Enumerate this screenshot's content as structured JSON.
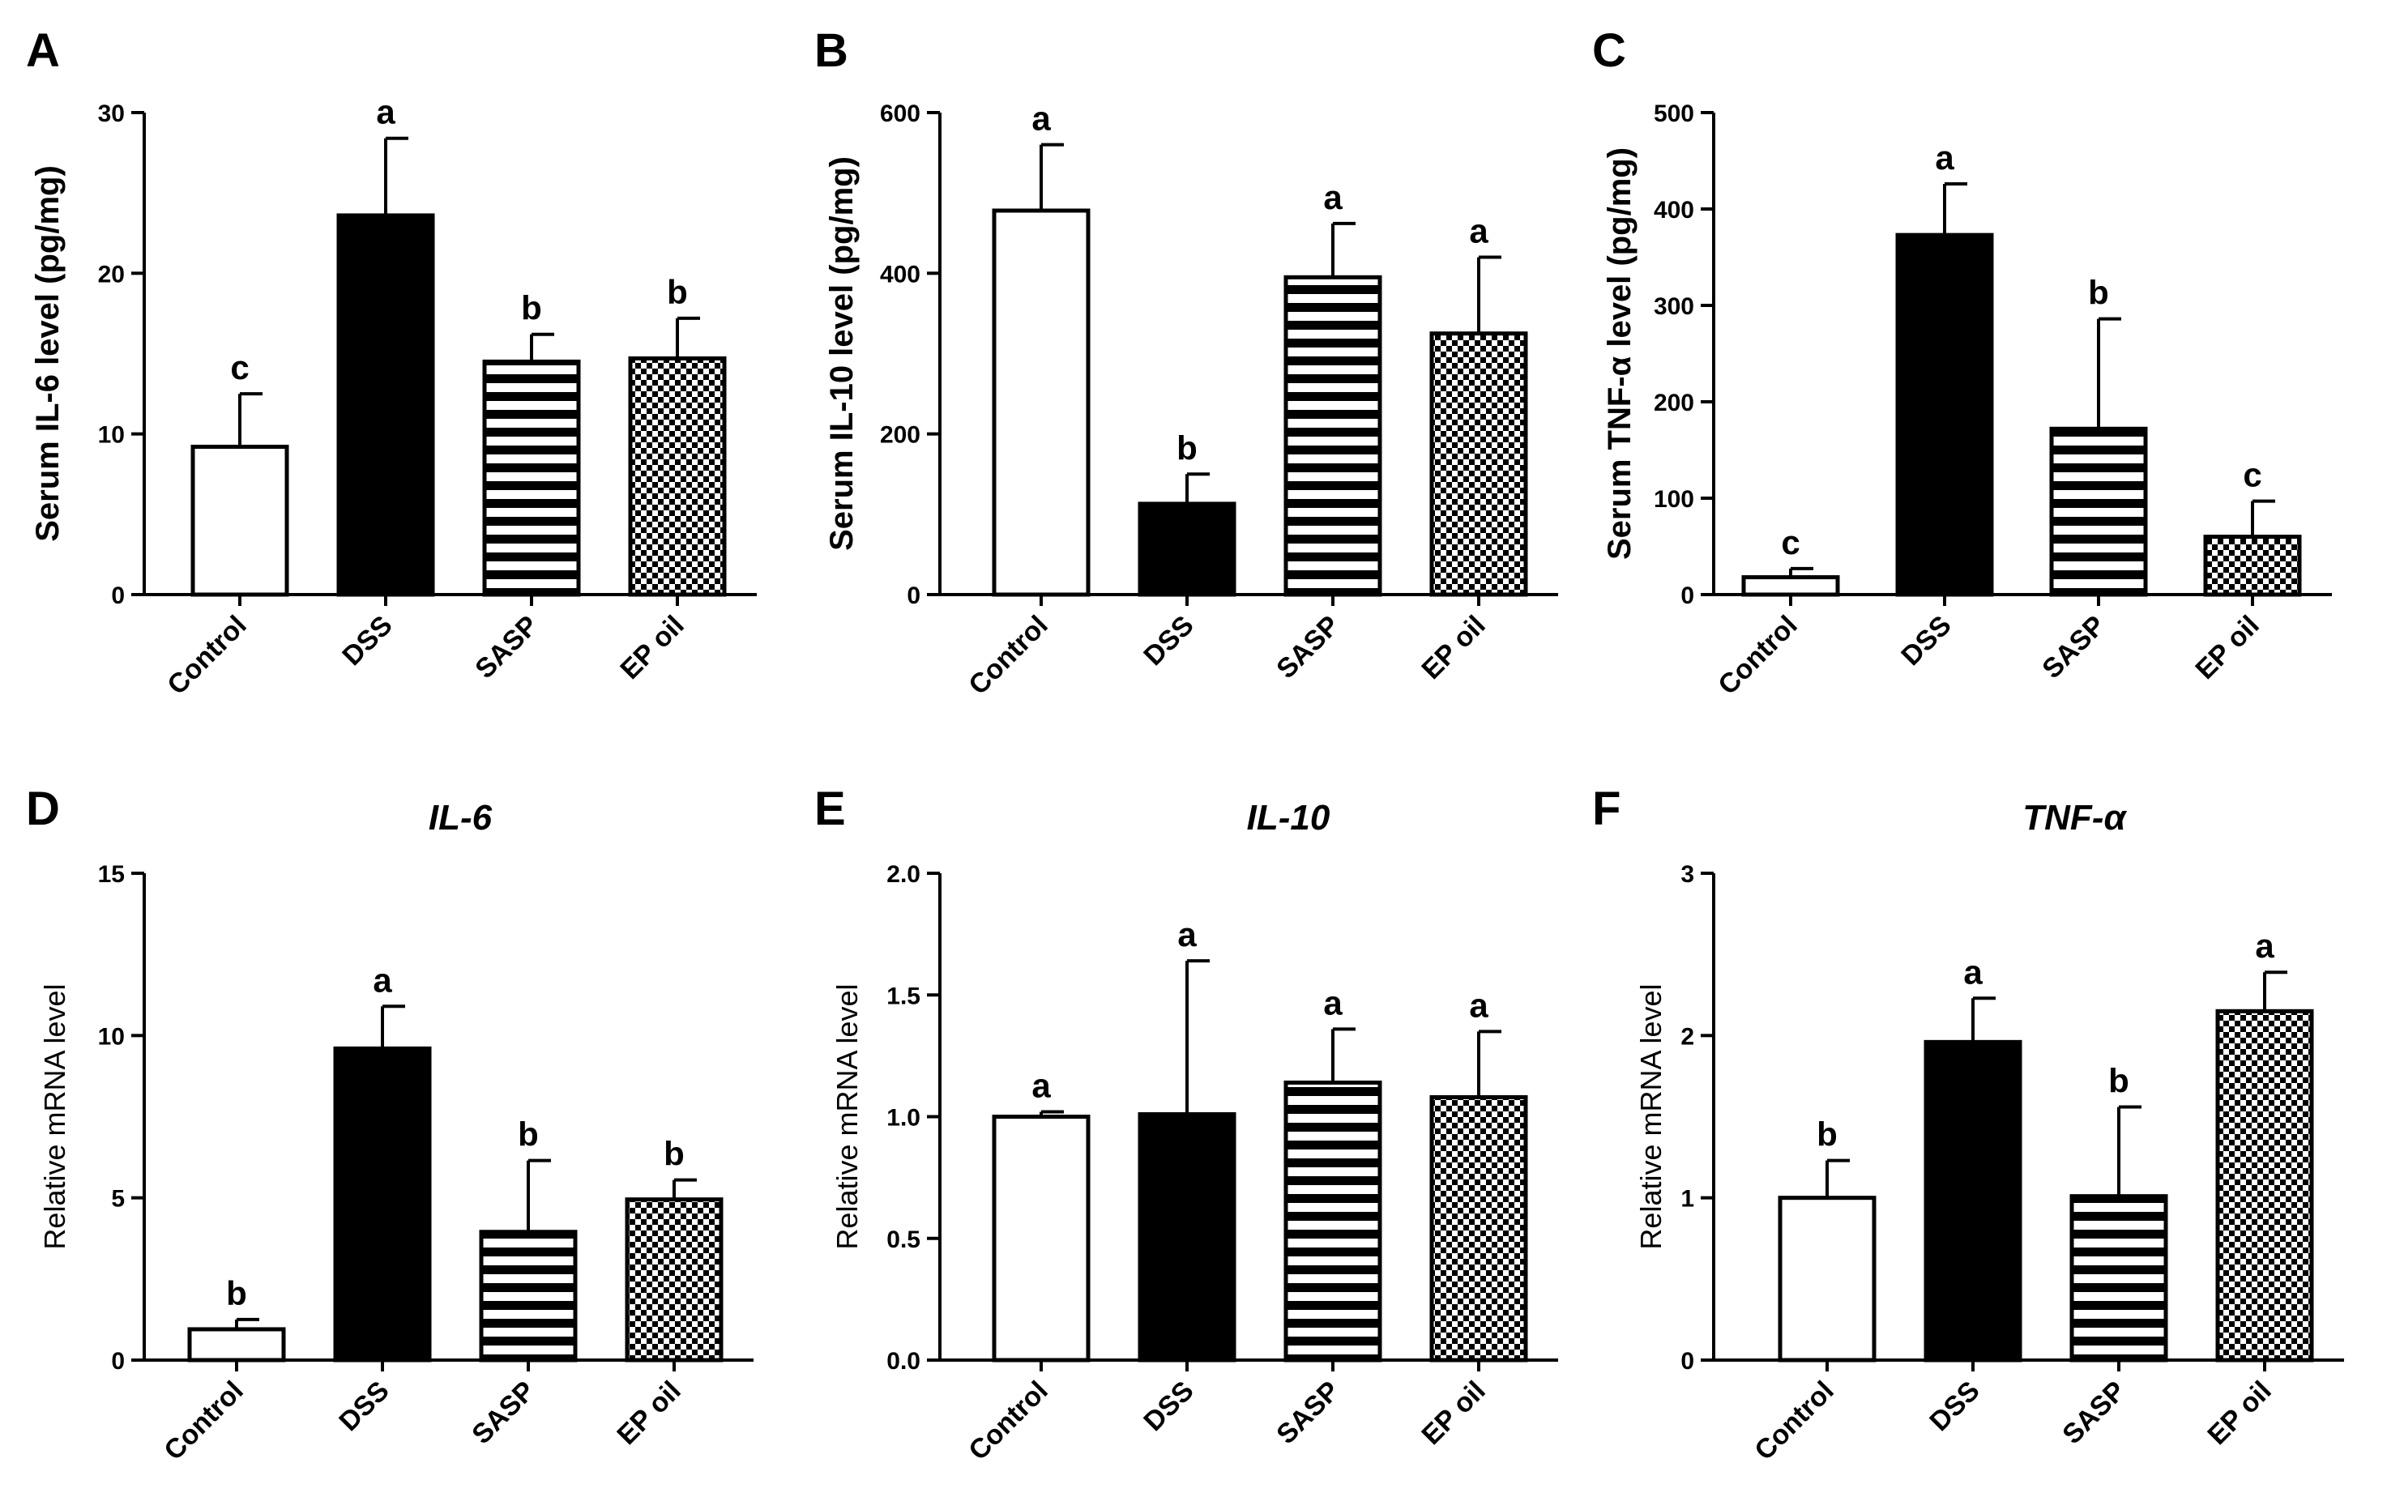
{
  "chart_data": [
    {
      "type": "bar",
      "panel": "A",
      "title": "",
      "ylabel": "Serum IL-6 level (pg/mg)",
      "ylim": [
        0,
        30
      ],
      "yticks": [
        0,
        10,
        20,
        30
      ],
      "categories": [
        "Control",
        "DSS",
        "SASP",
        "EP oil"
      ],
      "values": [
        9.2,
        23.6,
        14.5,
        14.7
      ],
      "errors": [
        3.3,
        4.8,
        1.7,
        2.5
      ],
      "letters": [
        "c",
        "a",
        "b",
        "b"
      ]
    },
    {
      "type": "bar",
      "panel": "B",
      "title": "",
      "ylabel": "Serum IL-10 level (pg/mg)",
      "ylim": [
        0,
        600
      ],
      "yticks": [
        0,
        200,
        400,
        600
      ],
      "categories": [
        "Control",
        "DSS",
        "SASP",
        "EP oil"
      ],
      "values": [
        478,
        113,
        395,
        325
      ],
      "errors": [
        82,
        37,
        67,
        95
      ],
      "letters": [
        "a",
        "b",
        "a",
        "a"
      ]
    },
    {
      "type": "bar",
      "panel": "C",
      "title": "",
      "ylabel": "Serum TNF-α level (pg/mg)",
      "ylim": [
        0,
        500
      ],
      "yticks": [
        0,
        100,
        200,
        300,
        400,
        500
      ],
      "categories": [
        "Control",
        "DSS",
        "SASP",
        "EP oil"
      ],
      "values": [
        18,
        373,
        172,
        60
      ],
      "errors": [
        9,
        53,
        114,
        37
      ],
      "letters": [
        "c",
        "a",
        "b",
        "c"
      ]
    },
    {
      "type": "bar",
      "panel": "D",
      "title": "IL-6",
      "ylabel": "Relative mRNA level",
      "ylim": [
        0,
        15
      ],
      "yticks": [
        0,
        5,
        10,
        15
      ],
      "categories": [
        "Control",
        "DSS",
        "SASP",
        "EP oil"
      ],
      "values": [
        0.95,
        9.6,
        3.95,
        4.95
      ],
      "errors": [
        0.3,
        1.3,
        2.2,
        0.6
      ],
      "letters": [
        "b",
        "a",
        "b",
        "b"
      ]
    },
    {
      "type": "bar",
      "panel": "E",
      "title": "IL-10",
      "ylabel": "Relative mRNA level",
      "ylim": [
        0,
        2.0
      ],
      "yticks": [
        "0.0",
        "0.5",
        "1.0",
        "1.5",
        "2.0"
      ],
      "categories": [
        "Control",
        "DSS",
        "SASP",
        "EP oil"
      ],
      "values": [
        1.0,
        1.01,
        1.14,
        1.08
      ],
      "errors": [
        0.02,
        0.63,
        0.22,
        0.27
      ],
      "letters": [
        "a",
        "a",
        "a",
        "a"
      ]
    },
    {
      "type": "bar",
      "panel": "F",
      "title": "TNF-α",
      "ylabel": "Relative mRNA level",
      "ylim": [
        0,
        3
      ],
      "yticks": [
        0,
        1,
        2,
        3
      ],
      "categories": [
        "Control",
        "DSS",
        "SASP",
        "EP oil"
      ],
      "values": [
        1.0,
        1.96,
        1.01,
        2.15
      ],
      "errors": [
        0.23,
        0.27,
        0.55,
        0.24
      ],
      "letters": [
        "b",
        "a",
        "b",
        "a"
      ]
    }
  ]
}
